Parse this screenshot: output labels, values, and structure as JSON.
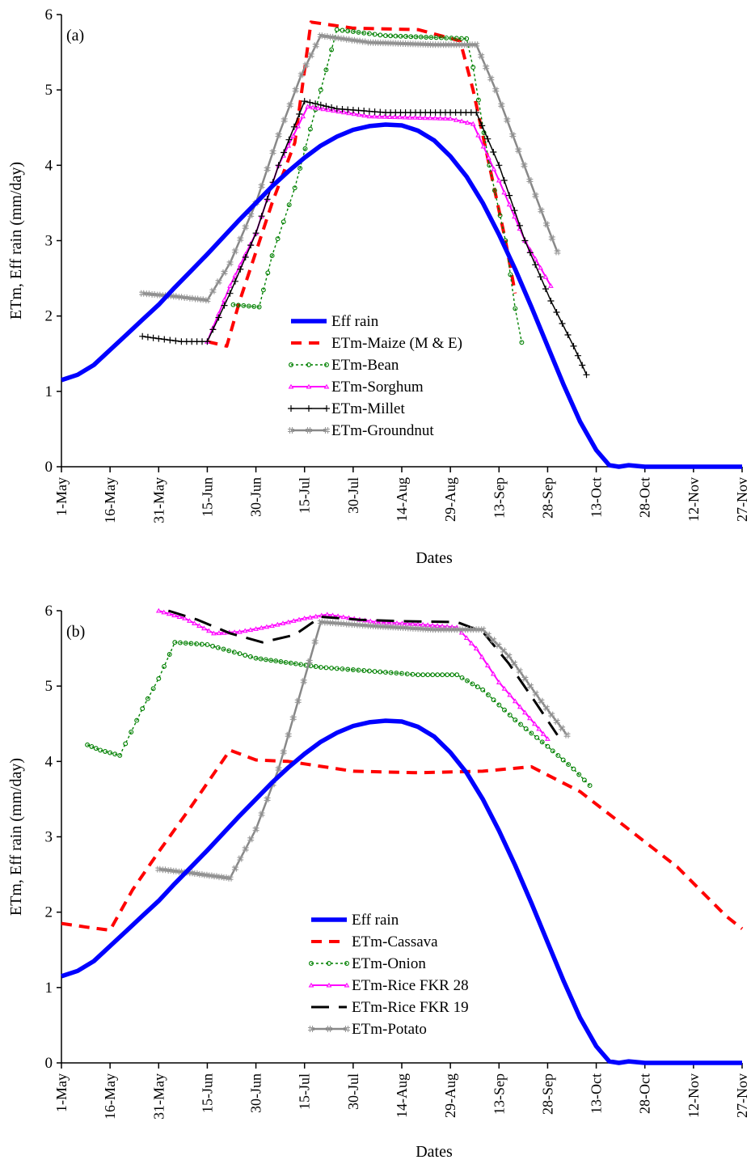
{
  "chart_data": [
    {
      "type": "line",
      "panel_label": "(a)",
      "xlabel": "Dates",
      "ylabel": "ETm, Eff rain (mm/day)",
      "ylim": [
        0,
        6
      ],
      "yticks": [
        "0",
        "1",
        "2",
        "3",
        "4",
        "5",
        "6"
      ],
      "x_unit": "day of season starting 1-May",
      "xlim": [
        0,
        210
      ],
      "xticks": [
        {
          "x": 0,
          "label": "1-May"
        },
        {
          "x": 15,
          "label": "16-May"
        },
        {
          "x": 30,
          "label": "31-May"
        },
        {
          "x": 45,
          "label": "15-Jun"
        },
        {
          "x": 60,
          "label": "30-Jun"
        },
        {
          "x": 75,
          "label": "15-Jul"
        },
        {
          "x": 90,
          "label": "30-Jul"
        },
        {
          "x": 105,
          "label": "14-Aug"
        },
        {
          "x": 120,
          "label": "29-Aug"
        },
        {
          "x": 135,
          "label": "13-Sep"
        },
        {
          "x": 150,
          "label": "28-Sep"
        },
        {
          "x": 165,
          "label": "13-Oct"
        },
        {
          "x": 180,
          "label": "28-Oct"
        },
        {
          "x": 195,
          "label": "12-Nov"
        },
        {
          "x": 210,
          "label": "27-Nov"
        }
      ],
      "legend_position": "lower-center",
      "series": [
        {
          "name": "Eff rain",
          "color": "#0000ff",
          "style": "thick",
          "points": [
            [
              0,
              1.15
            ],
            [
              5,
              1.22
            ],
            [
              10,
              1.35
            ],
            [
              15,
              1.55
            ],
            [
              20,
              1.75
            ],
            [
              25,
              1.95
            ],
            [
              30,
              2.15
            ],
            [
              35,
              2.38
            ],
            [
              40,
              2.6
            ],
            [
              45,
              2.82
            ],
            [
              50,
              3.05
            ],
            [
              55,
              3.28
            ],
            [
              60,
              3.5
            ],
            [
              65,
              3.72
            ],
            [
              70,
              3.92
            ],
            [
              75,
              4.1
            ],
            [
              80,
              4.26
            ],
            [
              85,
              4.38
            ],
            [
              90,
              4.47
            ],
            [
              95,
              4.52
            ],
            [
              100,
              4.54
            ],
            [
              105,
              4.53
            ],
            [
              110,
              4.46
            ],
            [
              115,
              4.33
            ],
            [
              120,
              4.12
            ],
            [
              125,
              3.85
            ],
            [
              130,
              3.5
            ],
            [
              135,
              3.08
            ],
            [
              140,
              2.62
            ],
            [
              145,
              2.12
            ],
            [
              150,
              1.6
            ],
            [
              155,
              1.08
            ],
            [
              160,
              0.6
            ],
            [
              165,
              0.22
            ],
            [
              169,
              0.02
            ],
            [
              172,
              0.0
            ],
            [
              175,
              0.02
            ],
            [
              180,
              0.0
            ],
            [
              210,
              0.0
            ]
          ]
        },
        {
          "name": "ETm-Maize (M & E)",
          "color": "#ff0000",
          "style": "dash",
          "points": [
            [
              45,
              1.66
            ],
            [
              51,
              1.6
            ],
            [
              55,
              2.2
            ],
            [
              60,
              2.85
            ],
            [
              65,
              3.5
            ],
            [
              72,
              4.3
            ],
            [
              77,
              5.9
            ],
            [
              90,
              5.82
            ],
            [
              110,
              5.8
            ],
            [
              123,
              5.65
            ],
            [
              127,
              5.0
            ],
            [
              132,
              4.0
            ],
            [
              137,
              3.0
            ],
            [
              140,
              2.3
            ]
          ]
        },
        {
          "name": "ETm-Bean",
          "color": "#008000",
          "style": "circles",
          "points": [
            [
              53,
              2.15
            ],
            [
              61,
              2.12
            ],
            [
              65,
              2.8
            ],
            [
              72,
              3.7
            ],
            [
              80,
              5.0
            ],
            [
              85,
              5.8
            ],
            [
              100,
              5.72
            ],
            [
              125,
              5.68
            ],
            [
              127,
              5.3
            ],
            [
              132,
              4.0
            ],
            [
              137,
              3.0
            ],
            [
              140,
              2.1
            ],
            [
              142,
              1.65
            ]
          ]
        },
        {
          "name": "ETm-Sorghum",
          "color": "#ff00ff",
          "style": "triangles",
          "points": [
            [
              45,
              1.66
            ],
            [
              52,
              2.4
            ],
            [
              60,
              3.1
            ],
            [
              67,
              4.0
            ],
            [
              76,
              4.78
            ],
            [
              95,
              4.65
            ],
            [
              120,
              4.62
            ],
            [
              127,
              4.55
            ],
            [
              135,
              3.8
            ],
            [
              143,
              3.0
            ],
            [
              151,
              2.4
            ]
          ]
        },
        {
          "name": "ETm-Millet",
          "color": "#000000",
          "style": "plus",
          "points": [
            [
              25,
              1.73
            ],
            [
              30,
              1.7
            ],
            [
              37,
              1.66
            ],
            [
              45,
              1.66
            ],
            [
              52,
              2.3
            ],
            [
              60,
              3.1
            ],
            [
              67,
              4.0
            ],
            [
              75,
              4.85
            ],
            [
              85,
              4.75
            ],
            [
              100,
              4.7
            ],
            [
              120,
              4.7
            ],
            [
              128,
              4.7
            ],
            [
              135,
              4.0
            ],
            [
              143,
              3.0
            ],
            [
              151,
              2.2
            ],
            [
              158,
              1.6
            ],
            [
              162,
              1.22
            ]
          ]
        },
        {
          "name": "ETm-Groundnut",
          "color": "#888888",
          "style": "hash",
          "points": [
            [
              25,
              2.3
            ],
            [
              35,
              2.26
            ],
            [
              45,
              2.21
            ],
            [
              52,
              2.7
            ],
            [
              60,
              3.5
            ],
            [
              67,
              4.4
            ],
            [
              74,
              5.2
            ],
            [
              80,
              5.72
            ],
            [
              95,
              5.63
            ],
            [
              115,
              5.6
            ],
            [
              128,
              5.6
            ],
            [
              134,
              5.0
            ],
            [
              141,
              4.2
            ],
            [
              148,
              3.4
            ],
            [
              153,
              2.85
            ]
          ]
        }
      ]
    },
    {
      "type": "line",
      "panel_label": "(b)",
      "xlabel": "Dates",
      "ylabel": "ETm, Eff rain (mm/day)",
      "ylim": [
        0,
        6
      ],
      "yticks": [
        "0",
        "1",
        "2",
        "3",
        "4",
        "5",
        "6"
      ],
      "x_unit": "day of season starting 1-May",
      "xlim": [
        0,
        210
      ],
      "xticks": [
        {
          "x": 0,
          "label": "1-May"
        },
        {
          "x": 15,
          "label": "16-May"
        },
        {
          "x": 30,
          "label": "31-May"
        },
        {
          "x": 45,
          "label": "15-Jun"
        },
        {
          "x": 60,
          "label": "30-Jun"
        },
        {
          "x": 75,
          "label": "15-Jul"
        },
        {
          "x": 90,
          "label": "30-Jul"
        },
        {
          "x": 105,
          "label": "14-Aug"
        },
        {
          "x": 120,
          "label": "29-Aug"
        },
        {
          "x": 135,
          "label": "13-Sep"
        },
        {
          "x": 150,
          "label": "28-Sep"
        },
        {
          "x": 165,
          "label": "13-Oct"
        },
        {
          "x": 180,
          "label": "28-Oct"
        },
        {
          "x": 195,
          "label": "12-Nov"
        },
        {
          "x": 210,
          "label": "27-Nov"
        }
      ],
      "legend_position": "lower-center",
      "series": [
        {
          "name": "Eff rain",
          "color": "#0000ff",
          "style": "thick",
          "points": [
            [
              0,
              1.15
            ],
            [
              5,
              1.22
            ],
            [
              10,
              1.35
            ],
            [
              15,
              1.55
            ],
            [
              20,
              1.75
            ],
            [
              25,
              1.95
            ],
            [
              30,
              2.15
            ],
            [
              35,
              2.38
            ],
            [
              40,
              2.6
            ],
            [
              45,
              2.82
            ],
            [
              50,
              3.05
            ],
            [
              55,
              3.28
            ],
            [
              60,
              3.5
            ],
            [
              65,
              3.72
            ],
            [
              70,
              3.92
            ],
            [
              75,
              4.1
            ],
            [
              80,
              4.26
            ],
            [
              85,
              4.38
            ],
            [
              90,
              4.47
            ],
            [
              95,
              4.52
            ],
            [
              100,
              4.54
            ],
            [
              105,
              4.53
            ],
            [
              110,
              4.46
            ],
            [
              115,
              4.33
            ],
            [
              120,
              4.12
            ],
            [
              125,
              3.85
            ],
            [
              130,
              3.5
            ],
            [
              135,
              3.08
            ],
            [
              140,
              2.62
            ],
            [
              145,
              2.12
            ],
            [
              150,
              1.6
            ],
            [
              155,
              1.08
            ],
            [
              160,
              0.6
            ],
            [
              165,
              0.22
            ],
            [
              169,
              0.02
            ],
            [
              172,
              0.0
            ],
            [
              175,
              0.02
            ],
            [
              180,
              0.0
            ],
            [
              210,
              0.0
            ]
          ]
        },
        {
          "name": "ETm-Cassava",
          "color": "#ff0000",
          "style": "dash",
          "points": [
            [
              0,
              1.85
            ],
            [
              8,
              1.8
            ],
            [
              15,
              1.76
            ],
            [
              22,
              2.3
            ],
            [
              30,
              2.8
            ],
            [
              40,
              3.4
            ],
            [
              52,
              4.15
            ],
            [
              60,
              4.02
            ],
            [
              70,
              4.0
            ],
            [
              90,
              3.87
            ],
            [
              110,
              3.85
            ],
            [
              130,
              3.87
            ],
            [
              145,
              3.93
            ],
            [
              160,
              3.6
            ],
            [
              175,
              3.1
            ],
            [
              190,
              2.6
            ],
            [
              205,
              1.95
            ],
            [
              210,
              1.78
            ]
          ]
        },
        {
          "name": "ETm-Onion",
          "color": "#008000",
          "style": "circles",
          "points": [
            [
              8,
              4.22
            ],
            [
              12,
              4.15
            ],
            [
              18,
              4.08
            ],
            [
              25,
              4.7
            ],
            [
              30,
              5.1
            ],
            [
              35,
              5.58
            ],
            [
              45,
              5.55
            ],
            [
              60,
              5.37
            ],
            [
              80,
              5.25
            ],
            [
              95,
              5.2
            ],
            [
              110,
              5.15
            ],
            [
              122,
              5.15
            ],
            [
              130,
              4.95
            ],
            [
              140,
              4.55
            ],
            [
              150,
              4.2
            ],
            [
              158,
              3.9
            ],
            [
              163,
              3.68
            ]
          ]
        },
        {
          "name": "ETm-Rice FKR 28",
          "color": "#ff00ff",
          "style": "triangles",
          "points": [
            [
              30,
              6.0
            ],
            [
              38,
              5.9
            ],
            [
              47,
              5.7
            ],
            [
              55,
              5.72
            ],
            [
              65,
              5.8
            ],
            [
              75,
              5.9
            ],
            [
              82,
              5.95
            ],
            [
              97,
              5.85
            ],
            [
              110,
              5.82
            ],
            [
              122,
              5.78
            ],
            [
              128,
              5.5
            ],
            [
              135,
              5.05
            ],
            [
              140,
              4.8
            ],
            [
              146,
              4.5
            ],
            [
              150,
              4.3
            ]
          ]
        },
        {
          "name": "ETm-Rice FKR 19",
          "color": "#000000",
          "style": "longdash",
          "points": [
            [
              33,
              6.0
            ],
            [
              42,
              5.88
            ],
            [
              52,
              5.7
            ],
            [
              62,
              5.58
            ],
            [
              72,
              5.68
            ],
            [
              80,
              5.92
            ],
            [
              92,
              5.88
            ],
            [
              105,
              5.86
            ],
            [
              122,
              5.85
            ],
            [
              130,
              5.72
            ],
            [
              138,
              5.3
            ],
            [
              146,
              4.8
            ],
            [
              153,
              4.35
            ]
          ]
        },
        {
          "name": "ETm-Potato",
          "color": "#888888",
          "style": "hash",
          "points": [
            [
              30,
              2.57
            ],
            [
              40,
              2.52
            ],
            [
              52,
              2.45
            ],
            [
              60,
              3.1
            ],
            [
              67,
              3.9
            ],
            [
              73,
              4.8
            ],
            [
              80,
              5.85
            ],
            [
              95,
              5.8
            ],
            [
              115,
              5.75
            ],
            [
              130,
              5.75
            ],
            [
              138,
              5.4
            ],
            [
              148,
              4.8
            ],
            [
              156,
              4.35
            ]
          ]
        }
      ]
    }
  ]
}
